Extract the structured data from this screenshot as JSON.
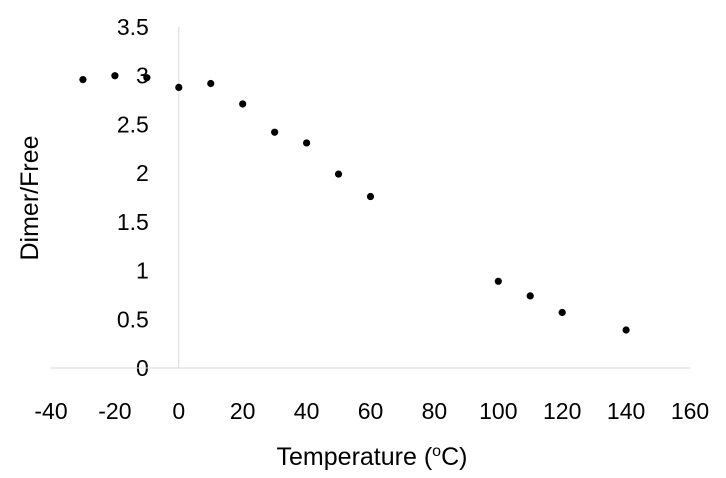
{
  "chart_data": {
    "type": "scatter",
    "title": "",
    "xlabel_parts": {
      "before": "Temperature (",
      "superscript": "o",
      "after": "C)"
    },
    "ylabel": "Dimer/Free",
    "xlim": [
      -40,
      160
    ],
    "ylim": [
      0,
      3.5
    ],
    "xticks": [
      -40,
      -20,
      0,
      20,
      40,
      60,
      80,
      100,
      120,
      140,
      160
    ],
    "xtick_labels": [
      "-40",
      "-20",
      "0",
      "20",
      "40",
      "60",
      "80",
      "100",
      "120",
      "140",
      "160"
    ],
    "yticks": [
      0,
      0.5,
      1,
      1.5,
      2,
      2.5,
      3,
      3.5
    ],
    "ytick_labels": [
      "0",
      "0.5",
      "1",
      "1.5",
      "2",
      "2.5",
      "3",
      "3.5"
    ],
    "grid": false,
    "legend": "none",
    "marker_color": "#000000",
    "series": [
      {
        "x": [
          -30,
          -20,
          -10,
          0,
          10,
          20,
          30,
          40,
          50,
          60,
          100,
          110,
          120,
          140
        ],
        "y": [
          2.96,
          3.0,
          2.98,
          2.88,
          2.92,
          2.71,
          2.42,
          2.31,
          1.99,
          1.76,
          0.89,
          0.74,
          0.57,
          0.39
        ]
      }
    ]
  }
}
